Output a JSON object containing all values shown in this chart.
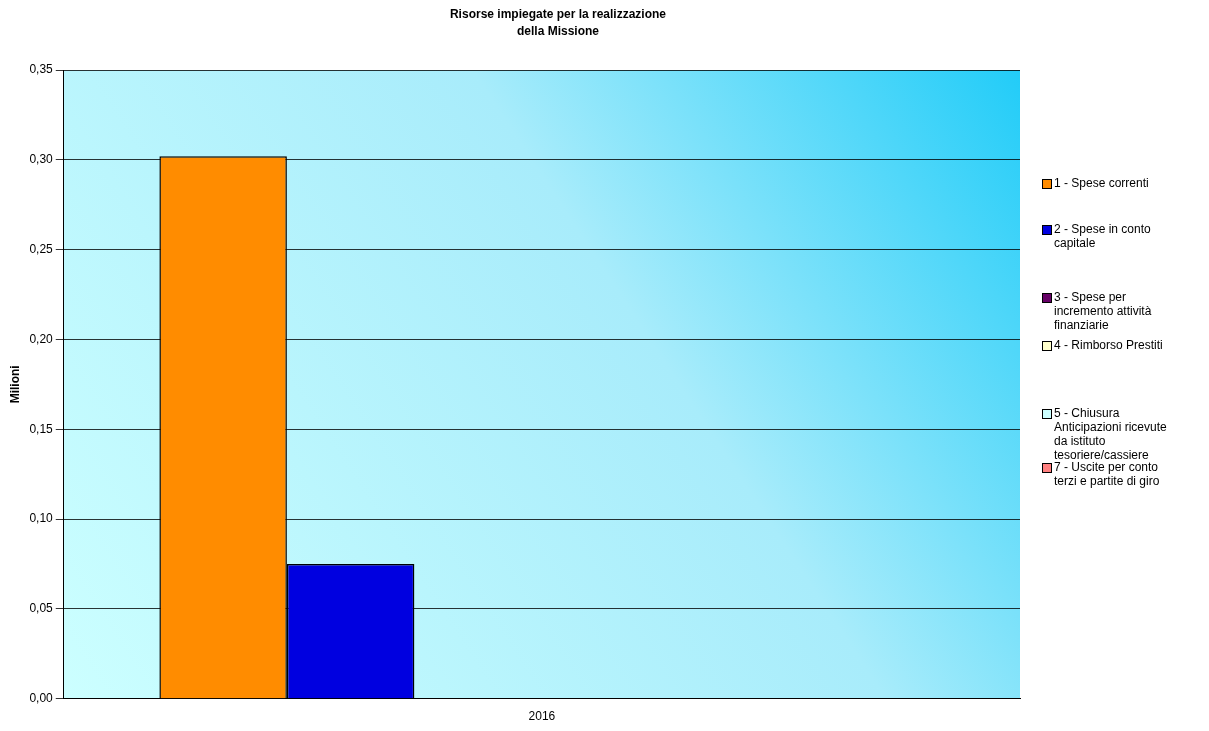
{
  "chart_data": {
    "type": "bar",
    "title": "Risorse impiegate per la realizzazione della Missione",
    "ylabel": "Milioni",
    "categories": [
      "2016"
    ],
    "series": [
      {
        "name": "1 - Spese correnti",
        "color": "#ff8c00",
        "values": [
          0.302
        ]
      },
      {
        "name": "2 - Spese in conto capitale",
        "color": "#0000e0",
        "values": [
          0.075
        ]
      },
      {
        "name": "3 - Spese per incremento attività finanziarie",
        "color": "#660066",
        "values": [
          0
        ]
      },
      {
        "name": "4 - Rimborso Prestiti",
        "color": "#ffffcc",
        "values": [
          0
        ]
      },
      {
        "name": "5 - Chiusura Anticipazioni ricevute da istituto tesoriere/cassiere",
        "color": "#ccffff",
        "values": [
          0
        ]
      },
      {
        "name": "7 - Uscite per conto terzi e partite di giro",
        "color": "#ff8080",
        "values": [
          0
        ]
      }
    ],
    "ylim": [
      0,
      0.35
    ],
    "yticks": [
      {
        "value": 0,
        "label": "0,00"
      },
      {
        "value": 0.05,
        "label": "0,05"
      },
      {
        "value": 0.1,
        "label": "0,10"
      },
      {
        "value": 0.15,
        "label": "0,15"
      },
      {
        "value": 0.2,
        "label": "0,20"
      },
      {
        "value": 0.25,
        "label": "0,25"
      },
      {
        "value": 0.3,
        "label": "0,30"
      },
      {
        "value": 0.35,
        "label": "0,35"
      }
    ],
    "grid": "y",
    "legend": "right"
  }
}
